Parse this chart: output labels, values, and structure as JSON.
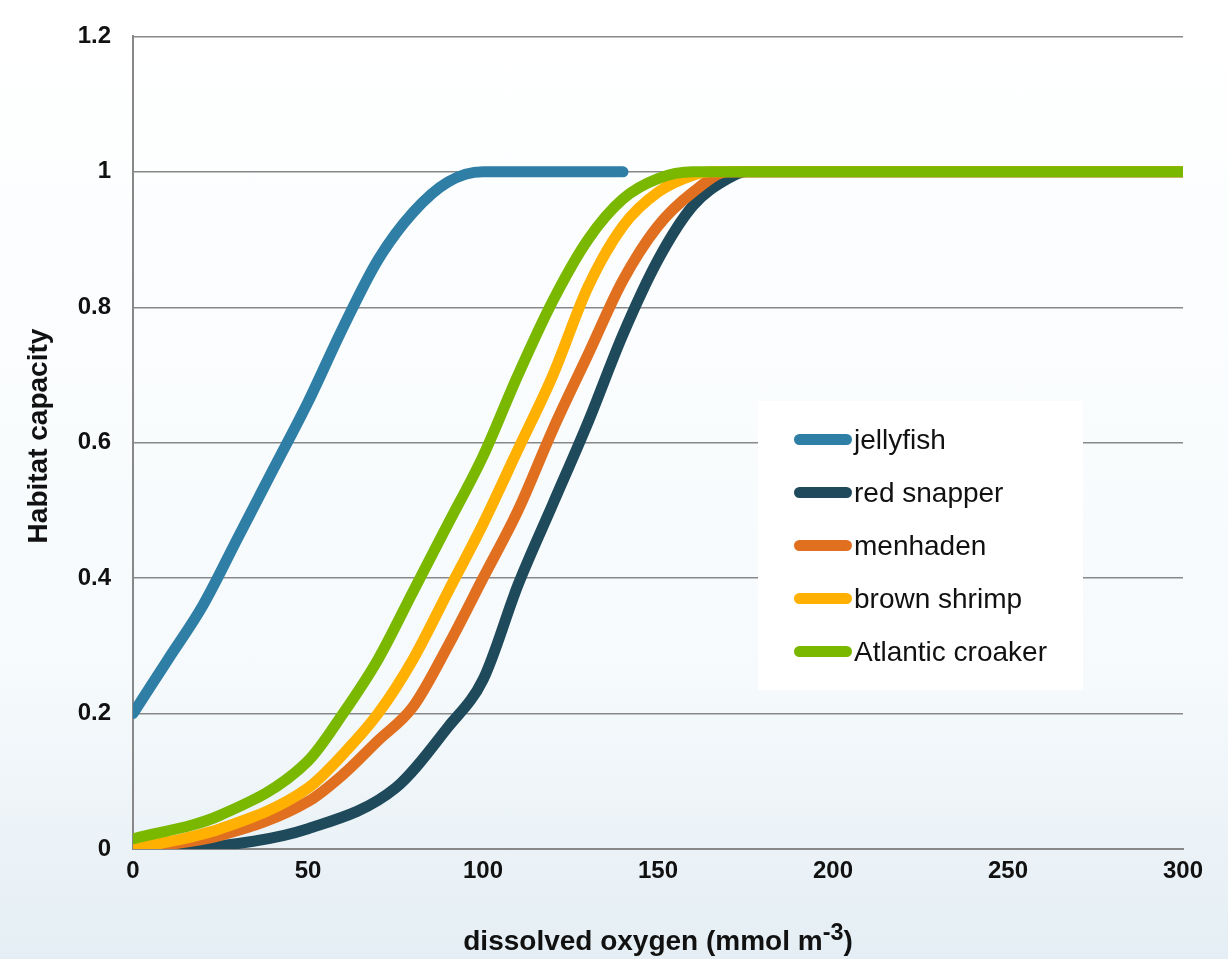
{
  "chart_data": {
    "type": "line",
    "xlabel": "dissolved oxygen (mmol m$^{-3}$)",
    "ylabel": "Habitat capacity",
    "xlim": [
      0,
      300
    ],
    "xticks": [
      0,
      50,
      100,
      150,
      200,
      250,
      300
    ],
    "ylim": [
      0,
      1.2
    ],
    "yticks": [
      0,
      {
        "value": 0.2,
        "label": "0.2"
      },
      {
        "value": 0.4,
        "label": "0.4"
      },
      {
        "value": 0.6,
        "label": "0.6"
      },
      {
        "value": 0.8,
        "label": "0.8"
      },
      1,
      {
        "value": 1.2,
        "label": "1.2"
      }
    ],
    "grid": "y",
    "legend": "right",
    "series": [
      {
        "name": "jellyfish",
        "color": "#2e7ea6",
        "x": [
          0,
          10,
          20,
          30,
          40,
          50,
          60,
          70,
          80,
          90,
          100,
          140
        ],
        "values": [
          0.2,
          0.28,
          0.36,
          0.46,
          0.56,
          0.66,
          0.77,
          0.87,
          0.94,
          0.985,
          1,
          1
        ]
      },
      {
        "name": "red snapper",
        "color": "#1f4a5c",
        "x": [
          0,
          25,
          50,
          75,
          90,
          100,
          110,
          120,
          130,
          140,
          150,
          160,
          170,
          175,
          300
        ],
        "values": [
          0,
          0.005,
          0.03,
          0.09,
          0.18,
          0.25,
          0.39,
          0.51,
          0.63,
          0.76,
          0.87,
          0.95,
          0.99,
          1,
          1
        ]
      },
      {
        "name": "menhaden",
        "color": "#e07020",
        "x": [
          0,
          25,
          50,
          60,
          70,
          80,
          90,
          100,
          110,
          120,
          130,
          140,
          150,
          160,
          170,
          300
        ],
        "values": [
          0,
          0.02,
          0.07,
          0.11,
          0.16,
          0.21,
          0.3,
          0.4,
          0.5,
          0.62,
          0.73,
          0.84,
          0.92,
          0.97,
          1,
          1
        ]
      },
      {
        "name": "brown shrimp",
        "color": "#ffb000",
        "x": [
          0,
          25,
          50,
          60,
          70,
          80,
          90,
          100,
          110,
          120,
          130,
          140,
          150,
          160,
          165,
          300
        ],
        "values": [
          0,
          0.03,
          0.09,
          0.14,
          0.2,
          0.28,
          0.38,
          0.48,
          0.59,
          0.7,
          0.83,
          0.92,
          0.97,
          0.995,
          1,
          1
        ]
      },
      {
        "name": "Atlantic croaker",
        "color": "#7ab800",
        "x": [
          0,
          25,
          50,
          60,
          70,
          80,
          90,
          100,
          110,
          120,
          130,
          140,
          150,
          160,
          300
        ],
        "values": [
          0.015,
          0.05,
          0.13,
          0.2,
          0.28,
          0.38,
          0.48,
          0.58,
          0.7,
          0.81,
          0.9,
          0.96,
          0.99,
          1,
          1
        ]
      }
    ]
  }
}
